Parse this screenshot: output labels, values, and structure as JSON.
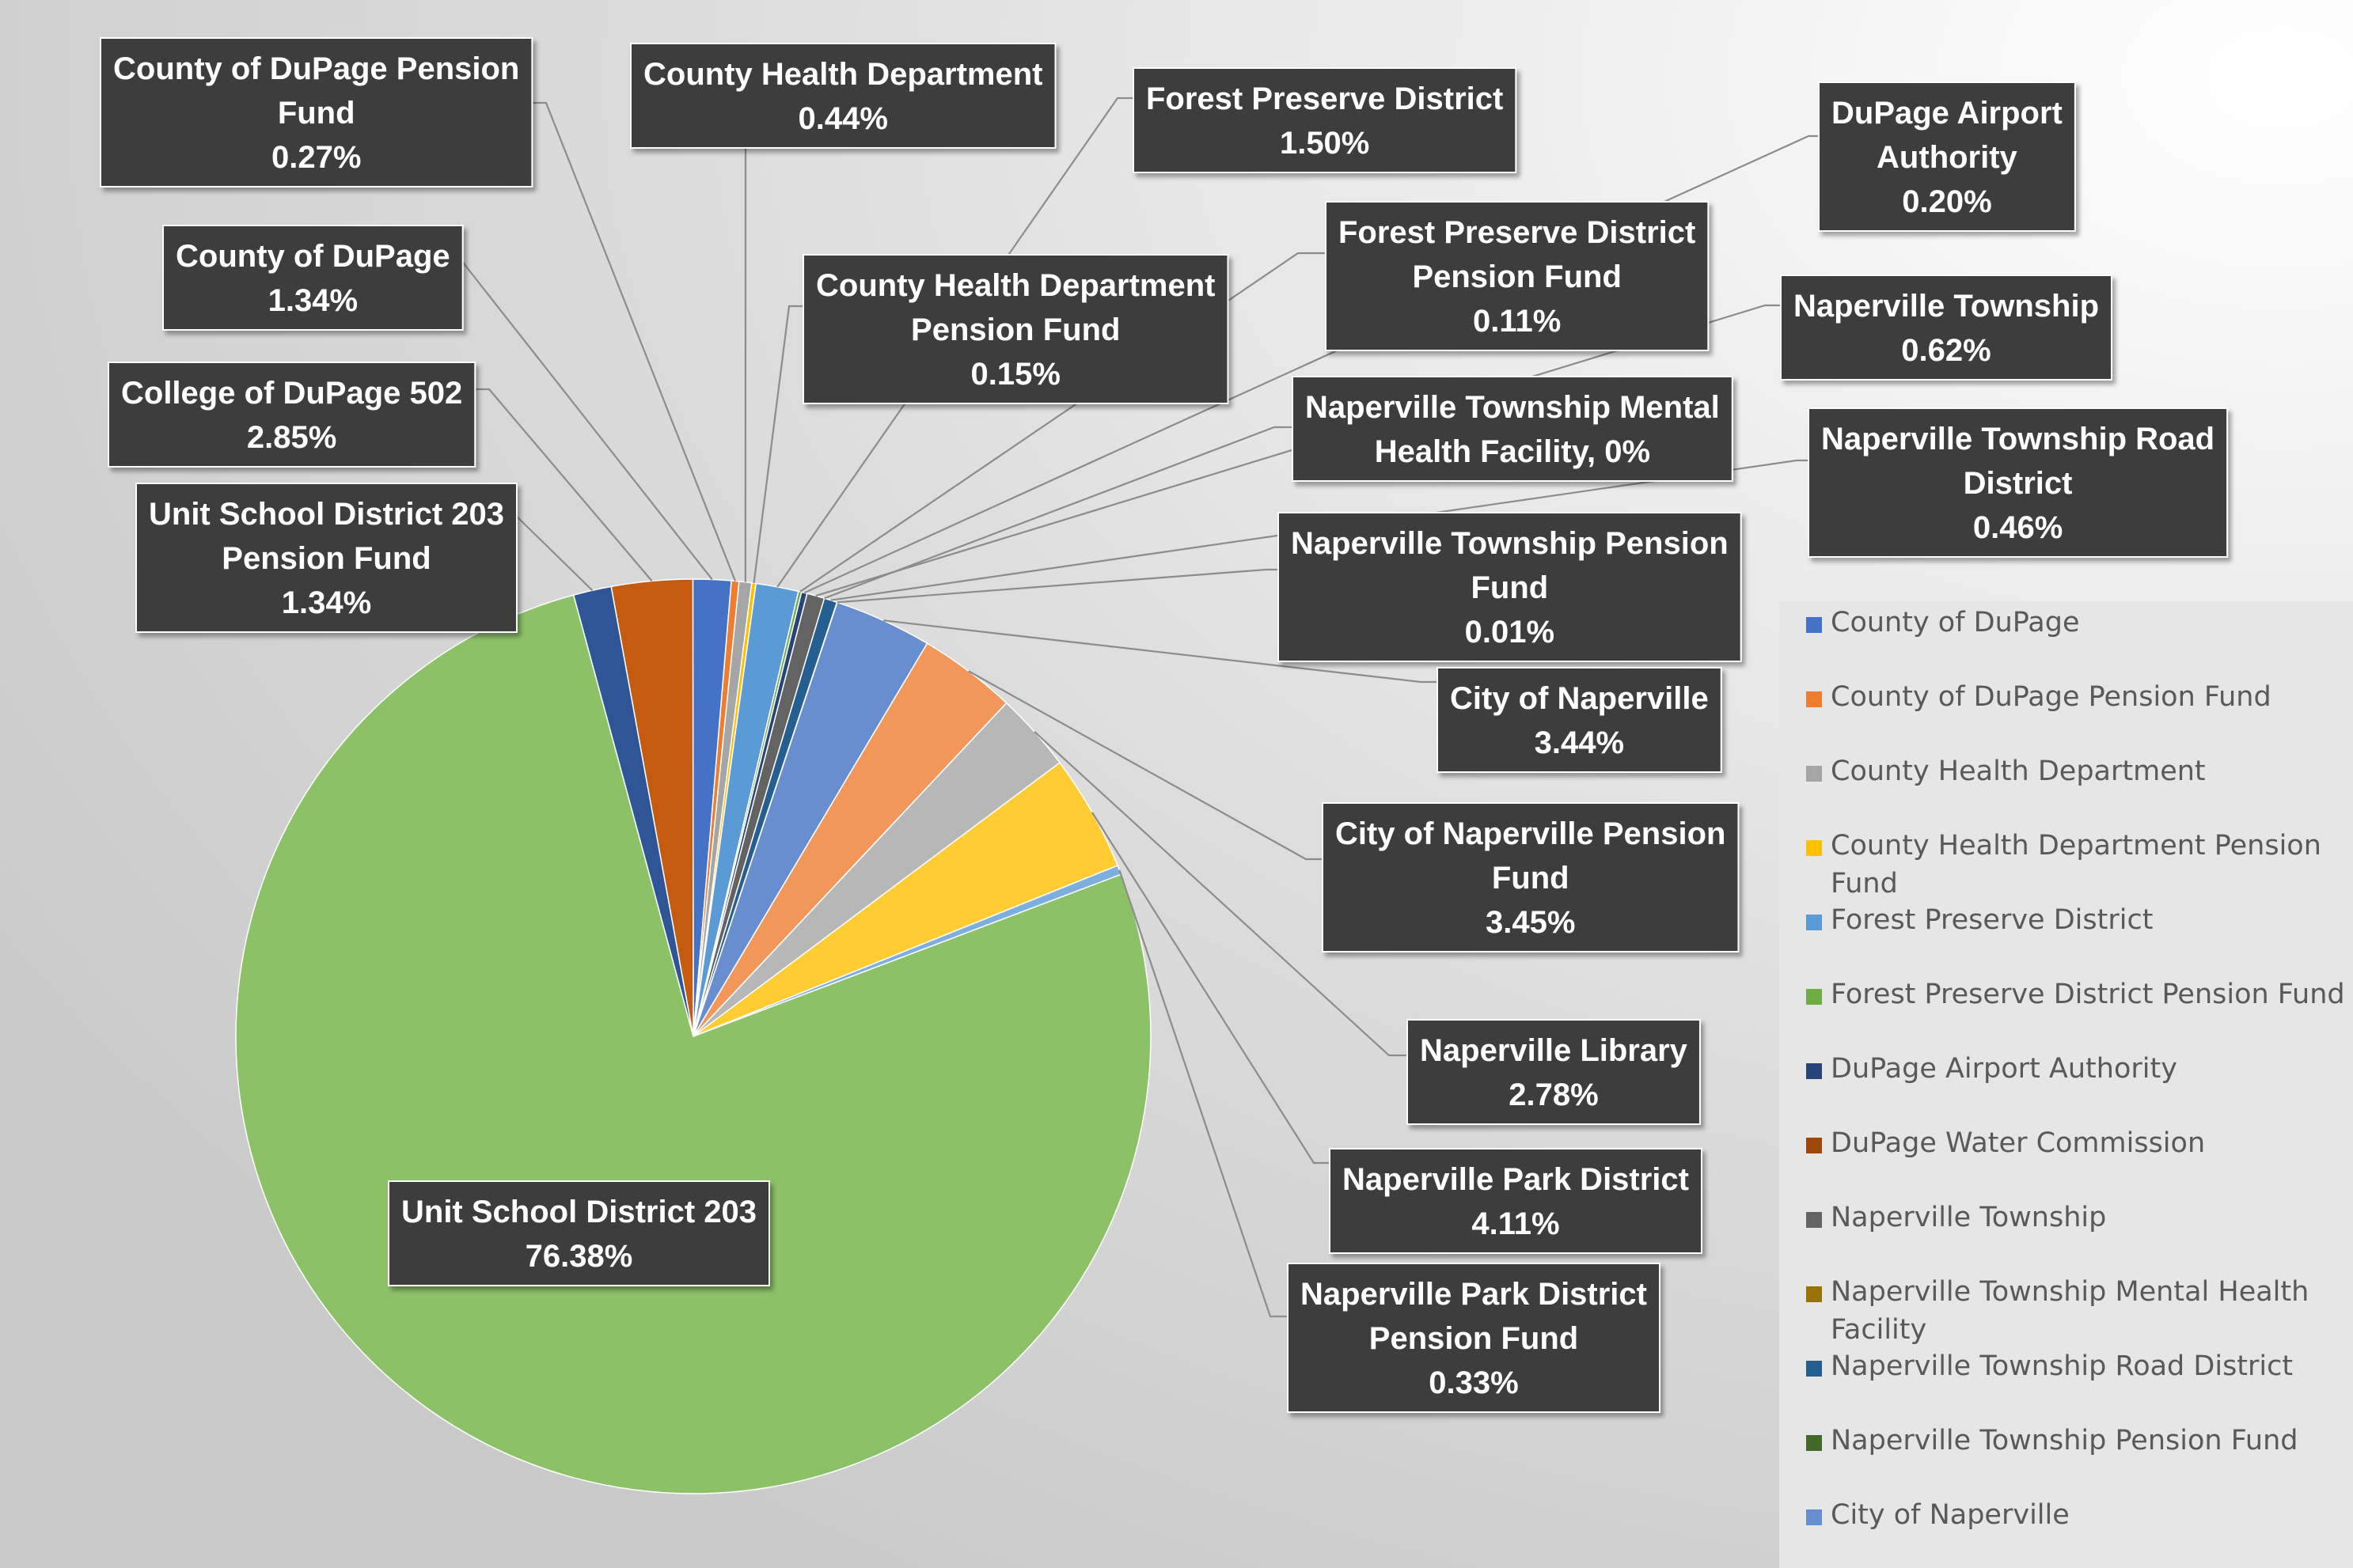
{
  "chart_data": {
    "type": "pie",
    "title": "",
    "slices": [
      {
        "name": "County of DuPage",
        "value": 1.34,
        "label_lines": [
          "County of DuPage",
          "1.34%"
        ],
        "color": "#4472C4"
      },
      {
        "name": "County of DuPage Pension Fund",
        "value": 0.27,
        "label_lines": [
          "County of DuPage Pension",
          "Fund",
          "0.27%"
        ],
        "color": "#ED7D31"
      },
      {
        "name": "County Health Department",
        "value": 0.44,
        "label_lines": [
          "County Health Department",
          "0.44%"
        ],
        "color": "#A5A5A5"
      },
      {
        "name": "County Health Department Pension Fund",
        "value": 0.15,
        "label_lines": [
          "County Health Department",
          "Pension Fund",
          "0.15%"
        ],
        "color": "#FFC000"
      },
      {
        "name": "Forest Preserve District",
        "value": 1.5,
        "label_lines": [
          "Forest Preserve District",
          "1.50%"
        ],
        "color": "#5B9BD5"
      },
      {
        "name": "Forest Preserve District Pension Fund",
        "value": 0.11,
        "label_lines": [
          "Forest Preserve District",
          "Pension Fund",
          "0.11%"
        ],
        "color": "#70AD47"
      },
      {
        "name": "DuPage Airport Authority",
        "value": 0.2,
        "label_lines": [
          "DuPage Airport",
          "Authority",
          "0.20%"
        ],
        "color": "#264478"
      },
      {
        "name": "DuPage Water Commission",
        "value": 0.0,
        "label_lines": [],
        "color": "#9E480E"
      },
      {
        "name": "Naperville Township",
        "value": 0.62,
        "label_lines": [
          "Naperville Township",
          "0.62%"
        ],
        "color": "#636363"
      },
      {
        "name": "Naperville Township Mental Health Facility",
        "value": 0.0,
        "label_lines": [
          "Naperville Township Mental",
          "Health Facility, 0%"
        ],
        "color": "#997300"
      },
      {
        "name": "Naperville Township Road District",
        "value": 0.46,
        "label_lines": [
          "Naperville Township Road",
          "District",
          "0.46%"
        ],
        "color": "#255E91"
      },
      {
        "name": "Naperville Township Pension Fund",
        "value": 0.01,
        "label_lines": [
          "Naperville Township Pension",
          "Fund",
          "0.01%"
        ],
        "color": "#43682B"
      },
      {
        "name": "City of Naperville",
        "value": 3.44,
        "label_lines": [
          "City of Naperville",
          "3.44%"
        ],
        "color": "#698ED0"
      },
      {
        "name": "City of Naperville Pension Fund",
        "value": 3.45,
        "label_lines": [
          "City of Naperville Pension",
          "Fund",
          "3.45%"
        ],
        "color": "#F1975A"
      },
      {
        "name": "Naperville Library",
        "value": 2.78,
        "label_lines": [
          "Naperville Library",
          "2.78%"
        ],
        "color": "#B7B7B7"
      },
      {
        "name": "Naperville Park District",
        "value": 4.11,
        "label_lines": [
          "Naperville Park District",
          "4.11%"
        ],
        "color": "#FFCD33"
      },
      {
        "name": "Naperville Park District Pension Fund",
        "value": 0.33,
        "label_lines": [
          "Naperville Park District",
          "Pension Fund",
          "0.33%"
        ],
        "color": "#7CAFDD"
      },
      {
        "name": "Unit School District 203",
        "value": 76.38,
        "label_lines": [
          "Unit School District 203",
          "76.38%"
        ],
        "color": "#8CC168"
      },
      {
        "name": "Unit School District 203 Pension Fund",
        "value": 1.34,
        "label_lines": [
          "Unit School District 203",
          "Pension Fund",
          "1.34%"
        ],
        "color": "#2F5597"
      },
      {
        "name": "College of DuPage 502",
        "value": 2.85,
        "label_lines": [
          "College of DuPage 502",
          "2.85%"
        ],
        "color": "#C55A11"
      }
    ],
    "legend": {
      "placement": "right",
      "entries": [
        {
          "lines": [
            "County of DuPage"
          ],
          "color": "#4472C4"
        },
        {
          "lines": [
            "County of DuPage Pension Fund"
          ],
          "color": "#ED7D31"
        },
        {
          "lines": [
            "County Health Department"
          ],
          "color": "#A5A5A5"
        },
        {
          "lines": [
            "County Health Department Pension",
            "Fund"
          ],
          "color": "#FFC000"
        },
        {
          "lines": [
            "Forest Preserve District"
          ],
          "color": "#5B9BD5"
        },
        {
          "lines": [
            "Forest Preserve District Pension Fund"
          ],
          "color": "#70AD47"
        },
        {
          "lines": [
            "DuPage Airport Authority"
          ],
          "color": "#264478"
        },
        {
          "lines": [
            "DuPage Water Commission"
          ],
          "color": "#9E480E"
        },
        {
          "lines": [
            "Naperville Township"
          ],
          "color": "#636363"
        },
        {
          "lines": [
            "Naperville Township Mental Health",
            "Facility"
          ],
          "color": "#997300"
        },
        {
          "lines": [
            "Naperville Township Road District"
          ],
          "color": "#255E91"
        },
        {
          "lines": [
            "Naperville Township Pension Fund"
          ],
          "color": "#43682B"
        },
        {
          "lines": [
            "City of Naperville"
          ],
          "color": "#698ED0"
        }
      ]
    }
  }
}
